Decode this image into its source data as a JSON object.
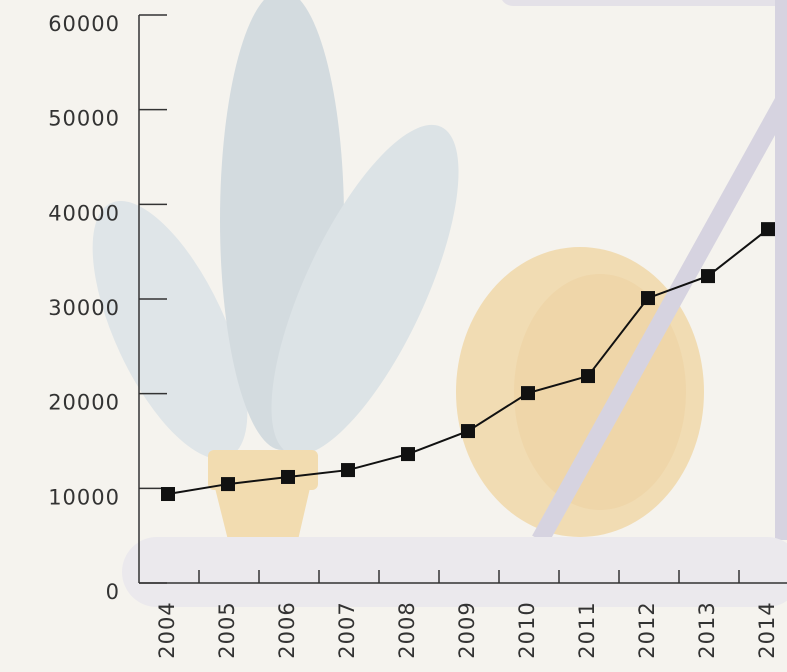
{
  "chart_data": {
    "type": "line",
    "categories": [
      "2004",
      "2005",
      "2006",
      "2007",
      "2008",
      "2009",
      "2010",
      "2011",
      "2012",
      "2013",
      "2014"
    ],
    "values": [
      9400,
      10450,
      11200,
      11930,
      13620,
      16050,
      20060,
      21860,
      30100,
      32420,
      37380
    ],
    "color": "#111111",
    "ylim": [
      0,
      60000
    ],
    "yticks": [
      0,
      10000,
      20000,
      30000,
      40000,
      50000,
      60000
    ]
  }
}
